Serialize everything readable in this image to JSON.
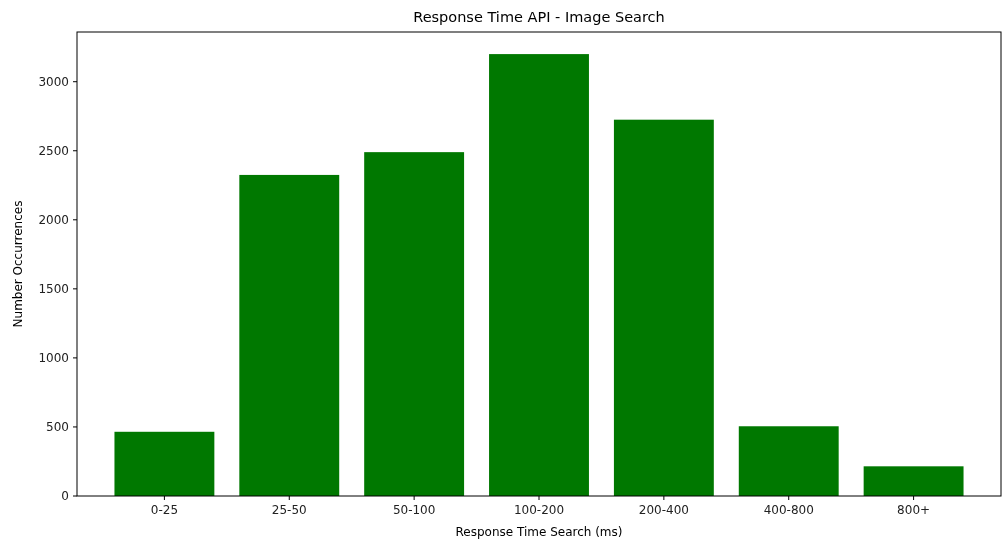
{
  "chart_data": {
    "type": "bar",
    "title": "Response Time API - Image Search",
    "xlabel": "Response Time Search (ms)",
    "ylabel": "Number Occurrences",
    "categories": [
      "0-25",
      "25-50",
      "50-100",
      "100-200",
      "200-400",
      "400-800",
      "800+"
    ],
    "values": [
      465,
      2325,
      2490,
      3200,
      2725,
      505,
      215
    ],
    "color": "#007800",
    "ylim": [
      0,
      3360
    ],
    "yticks": [
      0,
      500,
      1000,
      1500,
      2000,
      2500,
      3000
    ],
    "grid": false
  }
}
